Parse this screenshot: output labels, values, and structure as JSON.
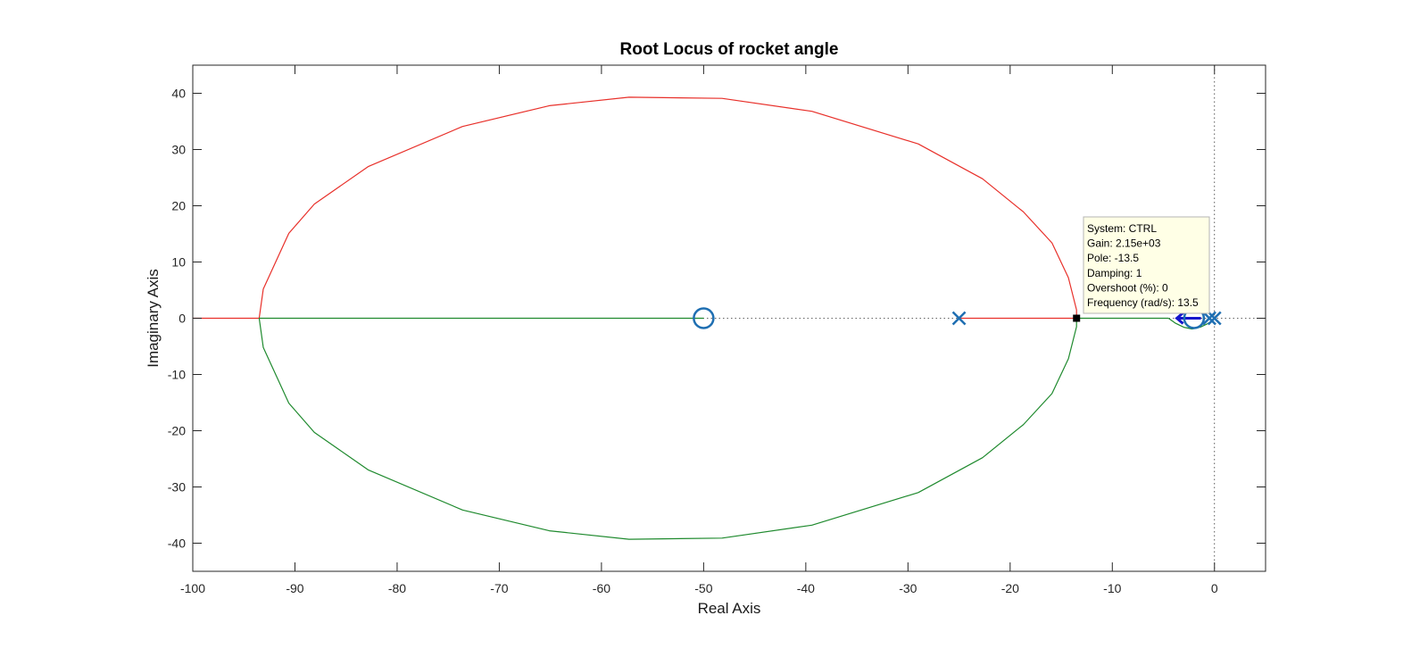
{
  "chart_data": {
    "type": "scatter",
    "title": "Root Locus of rocket angle",
    "xlabel": "Real Axis",
    "ylabel": "Imaginary Axis",
    "xlim": [
      -100,
      5
    ],
    "ylim": [
      -45,
      45
    ],
    "xticks": [
      -100,
      -90,
      -80,
      -70,
      -60,
      -50,
      -40,
      -30,
      -20,
      -10,
      0
    ],
    "yticks": [
      -40,
      -30,
      -20,
      -10,
      0,
      10,
      20,
      30,
      40
    ],
    "grid": false,
    "legend": "none",
    "colors": {
      "branch_red": "#e8302a",
      "branch_green": "#1f8a2e",
      "marker_blue": "#1f6fb2",
      "arrow_blue": "#1515cc",
      "tooltip_bg": "#ffffe6",
      "tooltip_border": "#b4b4b4"
    },
    "poles": [
      {
        "x": -25,
        "y": 0
      },
      {
        "x": 0,
        "y": 0
      },
      {
        "x": -0.5,
        "y": 0
      }
    ],
    "zeros": [
      {
        "x": -50,
        "y": 0
      },
      {
        "x": -2,
        "y": 0
      }
    ],
    "series": [
      {
        "color": "red",
        "x": [
          -100,
          -93.5,
          -93.1,
          -90.6,
          -88.1,
          -82.8,
          -73.6,
          -65.1,
          -57.3,
          -48.2,
          -39.4,
          -29.0,
          -22.7,
          -18.7,
          -15.9,
          -14.3,
          -13.5,
          -13.5,
          -25
        ],
        "y": [
          0,
          0,
          5.2,
          15.1,
          20.3,
          27.0,
          34.1,
          37.8,
          39.3,
          39.1,
          36.8,
          31.0,
          24.8,
          18.9,
          13.4,
          7.2,
          1.5,
          0,
          0
        ]
      },
      {
        "color": "green",
        "x": [
          -50,
          -93.5,
          -93.1,
          -90.6,
          -88.1,
          -82.8,
          -73.6,
          -65.1,
          -57.3,
          -48.2,
          -39.4,
          -29.0,
          -22.7,
          -18.7,
          -15.9,
          -14.3,
          -13.5,
          -13.5,
          -4.5
        ],
        "y": [
          0,
          0,
          -5.2,
          -15.1,
          -20.3,
          -27.0,
          -34.1,
          -37.8,
          -39.3,
          -39.1,
          -36.8,
          -31.0,
          -24.8,
          -18.9,
          -13.4,
          -7.2,
          -1.5,
          0,
          0
        ]
      },
      {
        "color": "green",
        "x": [
          -4.5,
          -3.8,
          -3.0,
          -2.2,
          -1.4,
          -0.7,
          -0.2,
          0
        ],
        "y": [
          0,
          -0.9,
          -1.6,
          -1.9,
          -1.6,
          -1.0,
          -0.4,
          0
        ]
      }
    ],
    "datatip": {
      "x": -13.5,
      "y": 0,
      "lines": [
        "System: CTRL",
        "Gain: 2.15e+03",
        "Pole: -13.5",
        "Damping: 1",
        "Overshoot (%): 0",
        "Frequency (rad/s): 13.5"
      ]
    }
  }
}
